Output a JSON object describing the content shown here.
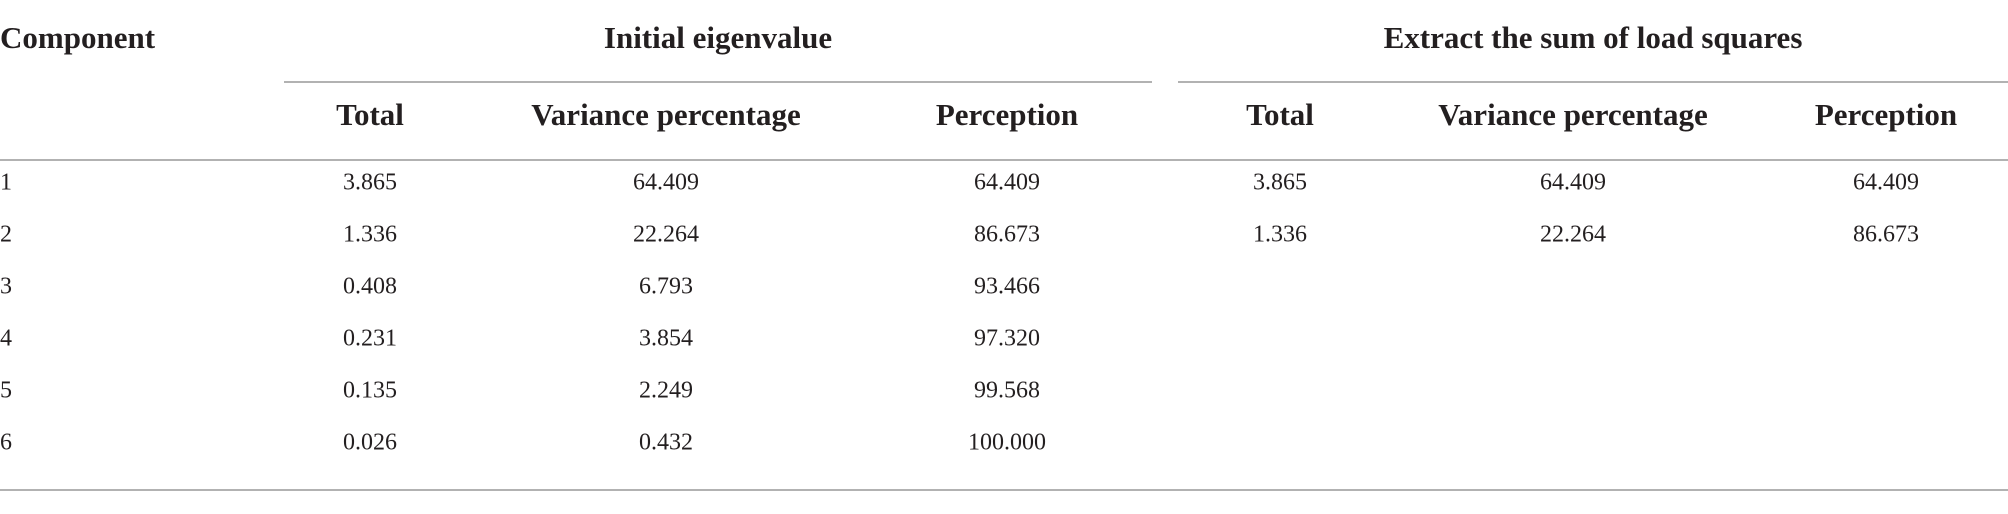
{
  "table": {
    "header": "Component",
    "groups": [
      {
        "title": "Initial eigenvalue",
        "columns": [
          "Total",
          "Variance percentage",
          "Perception"
        ]
      },
      {
        "title": "Extract the sum of load squares",
        "columns": [
          "Total",
          "Variance percentage",
          "Perception"
        ]
      }
    ],
    "rows": [
      [
        "1",
        "3.865",
        "64.409",
        "64.409",
        "3.865",
        "64.409",
        "64.409"
      ],
      [
        "2",
        "1.336",
        "22.264",
        "86.673",
        "1.336",
        "22.264",
        "86.673"
      ],
      [
        "3",
        "0.408",
        "6.793",
        "93.466"
      ],
      [
        "4",
        "0.231",
        "3.854",
        "97.320"
      ],
      [
        "5",
        "0.135",
        "2.249",
        "99.568"
      ],
      [
        "6",
        "0.026",
        "0.432",
        "100.000"
      ]
    ]
  }
}
